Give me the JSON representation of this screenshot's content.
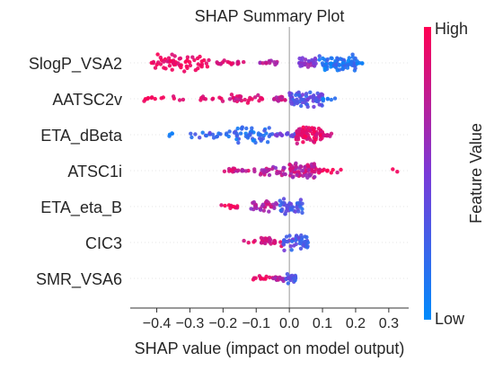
{
  "chart_data": {
    "type": "scatter",
    "subtype": "shap-beeswarm",
    "title": "SHAP Summary Plot",
    "xlabel": "SHAP value (impact on model output)",
    "xlim": [
      -0.48,
      0.36
    ],
    "xticks": [
      -0.4,
      -0.3,
      -0.2,
      -0.1,
      0.0,
      0.1,
      0.2,
      0.3
    ],
    "xtick_labels": [
      "−0.4",
      "−0.3",
      "−0.2",
      "−0.1",
      "0.0",
      "0.1",
      "0.2",
      "0.3"
    ],
    "features": [
      "SlogP_VSA2",
      "AATSC2v",
      "ETA_dBeta",
      "ATSC1i",
      "ETA_eta_B",
      "CIC3",
      "SMR_VSA6"
    ],
    "colorbar": {
      "label": "Feature Value",
      "high_label": "High",
      "low_label": "Low",
      "high_color": "#ff0052",
      "low_color": "#008bfb"
    },
    "series": [
      {
        "feature": "SlogP_VSA2",
        "clusters": [
          {
            "x": [
              -0.42,
              -0.24
            ],
            "n": 60,
            "fv": [
              0.85,
              1.0
            ]
          },
          {
            "x": [
              -0.22,
              -0.13
            ],
            "n": 18,
            "fv": [
              0.75,
              0.95
            ]
          },
          {
            "x": [
              -0.1,
              -0.03
            ],
            "n": 14,
            "fv": [
              0.6,
              0.85
            ]
          },
          {
            "x": [
              0.03,
              0.08
            ],
            "n": 30,
            "fv": [
              0.45,
              0.7
            ]
          },
          {
            "x": [
              0.09,
              0.2
            ],
            "n": 80,
            "fv": [
              0.0,
              0.3
            ]
          },
          {
            "x": [
              0.2,
              0.22
            ],
            "n": 6,
            "fv": [
              0.0,
              0.15
            ]
          }
        ]
      },
      {
        "feature": "AATSC2v",
        "clusters": [
          {
            "x": [
              -0.45,
              -0.32
            ],
            "n": 14,
            "fv": [
              0.85,
              1.0
            ]
          },
          {
            "x": [
              -0.28,
              -0.18
            ],
            "n": 10,
            "fv": [
              0.8,
              1.0
            ]
          },
          {
            "x": [
              -0.18,
              -0.08
            ],
            "n": 24,
            "fv": [
              0.75,
              0.95
            ]
          },
          {
            "x": [
              -0.05,
              -0.01
            ],
            "n": 16,
            "fv": [
              0.65,
              0.95
            ]
          },
          {
            "x": [
              0.0,
              0.1
            ],
            "n": 70,
            "fv": [
              0.2,
              0.5
            ]
          },
          {
            "x": [
              0.1,
              0.14
            ],
            "n": 8,
            "fv": [
              0.0,
              0.2
            ]
          }
        ]
      },
      {
        "feature": "ETA_dBeta",
        "clusters": [
          {
            "x": [
              -0.37,
              -0.34
            ],
            "n": 4,
            "fv": [
              0.0,
              0.15
            ]
          },
          {
            "x": [
              -0.3,
              -0.16
            ],
            "n": 22,
            "fv": [
              0.1,
              0.4
            ]
          },
          {
            "x": [
              -0.16,
              -0.05
            ],
            "n": 45,
            "fv": [
              0.05,
              0.35
            ]
          },
          {
            "x": [
              -0.05,
              0.02
            ],
            "n": 18,
            "fv": [
              0.25,
              0.55
            ]
          },
          {
            "x": [
              0.02,
              0.1
            ],
            "n": 80,
            "fv": [
              0.8,
              1.0
            ]
          },
          {
            "x": [
              0.1,
              0.13
            ],
            "n": 8,
            "fv": [
              0.75,
              0.9
            ]
          }
        ]
      },
      {
        "feature": "ATSC1i",
        "clusters": [
          {
            "x": [
              -0.2,
              -0.1
            ],
            "n": 20,
            "fv": [
              0.65,
              0.95
            ]
          },
          {
            "x": [
              -0.1,
              -0.01
            ],
            "n": 28,
            "fv": [
              0.55,
              0.85
            ]
          },
          {
            "x": [
              0.0,
              0.08
            ],
            "n": 70,
            "fv": [
              0.6,
              0.9
            ]
          },
          {
            "x": [
              0.08,
              0.16
            ],
            "n": 14,
            "fv": [
              0.75,
              1.0
            ]
          },
          {
            "x": [
              0.3,
              0.33
            ],
            "n": 2,
            "fv": [
              0.9,
              1.0
            ]
          }
        ]
      },
      {
        "feature": "ETA_eta_B",
        "clusters": [
          {
            "x": [
              -0.23,
              -0.15
            ],
            "n": 10,
            "fv": [
              0.85,
              1.0
            ]
          },
          {
            "x": [
              -0.12,
              -0.03
            ],
            "n": 30,
            "fv": [
              0.55,
              0.85
            ]
          },
          {
            "x": [
              -0.03,
              0.04
            ],
            "n": 45,
            "fv": [
              0.15,
              0.45
            ]
          }
        ]
      },
      {
        "feature": "CIC3",
        "clusters": [
          {
            "x": [
              -0.15,
              -0.1
            ],
            "n": 4,
            "fv": [
              0.8,
              1.0
            ]
          },
          {
            "x": [
              -0.09,
              -0.02
            ],
            "n": 28,
            "fv": [
              0.75,
              0.95
            ]
          },
          {
            "x": [
              -0.02,
              0.06
            ],
            "n": 50,
            "fv": [
              0.15,
              0.5
            ]
          }
        ]
      },
      {
        "feature": "SMR_VSA6",
        "clusters": [
          {
            "x": [
              -0.11,
              -0.05
            ],
            "n": 12,
            "fv": [
              0.85,
              1.0
            ]
          },
          {
            "x": [
              -0.05,
              -0.01
            ],
            "n": 20,
            "fv": [
              0.6,
              0.9
            ]
          },
          {
            "x": [
              -0.01,
              0.02
            ],
            "n": 30,
            "fv": [
              0.15,
              0.45
            ]
          }
        ]
      }
    ]
  }
}
